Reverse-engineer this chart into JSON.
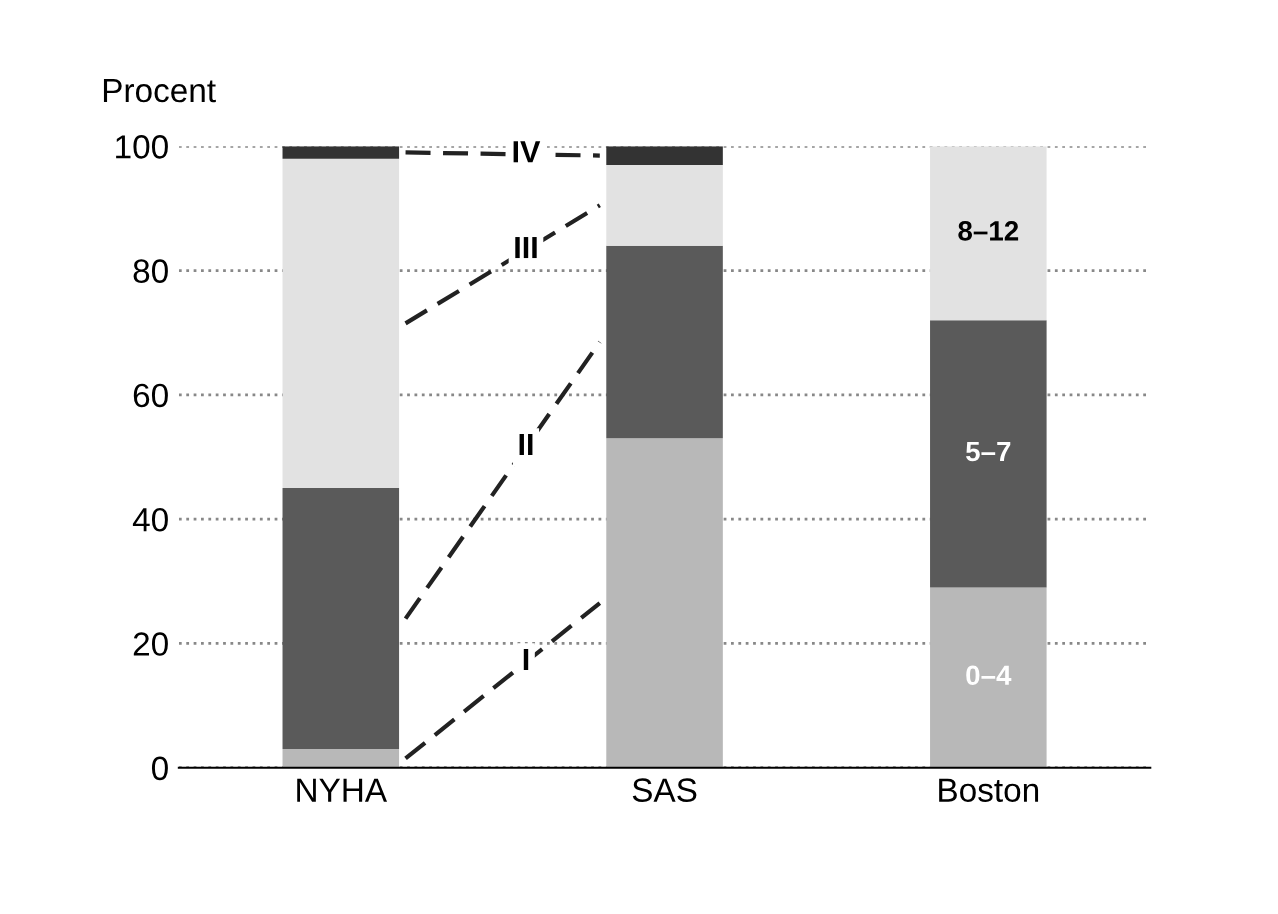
{
  "chart_data": {
    "type": "bar",
    "stacked": true,
    "ylabel": "Procent",
    "categories": [
      "NYHA",
      "SAS",
      "Boston"
    ],
    "series": [
      {
        "name": "I",
        "color": "#b8b8b8",
        "values": [
          3,
          53,
          29
        ],
        "value_labels": [
          null,
          null,
          "0–4"
        ]
      },
      {
        "name": "II",
        "color": "#5a5a5a",
        "values": [
          42,
          31,
          43
        ],
        "value_labels": [
          null,
          null,
          "5–7"
        ]
      },
      {
        "name": "III",
        "color": "#e2e2e2",
        "values": [
          53,
          13,
          28
        ],
        "value_labels": [
          null,
          null,
          "8–12"
        ]
      },
      {
        "name": "IV",
        "color": "#333333",
        "values": [
          2,
          3,
          null
        ],
        "value_labels": [
          null,
          null,
          null
        ]
      }
    ],
    "ylim": [
      0,
      100
    ],
    "yticks": [
      0,
      20,
      40,
      60,
      80,
      100
    ],
    "grid": "y",
    "legend": false
  }
}
